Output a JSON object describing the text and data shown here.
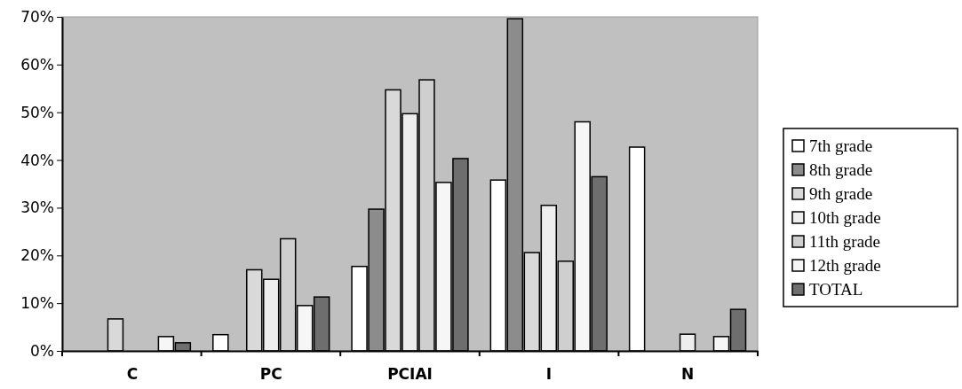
{
  "chart_data": {
    "type": "bar",
    "categories": [
      "C",
      "PC",
      "PCIAI",
      "I",
      "N"
    ],
    "series": [
      {
        "name": "7th grade",
        "color": "#ffffff",
        "values": [
          0,
          3.4,
          17.7,
          35.8,
          42.7
        ]
      },
      {
        "name": "8th grade",
        "color": "#8c8c8c",
        "values": [
          0,
          0,
          29.7,
          69.6,
          0
        ]
      },
      {
        "name": "9th grade",
        "color": "#d9d9d9",
        "values": [
          6.7,
          17,
          54.7,
          20.6,
          0
        ]
      },
      {
        "name": "10th grade",
        "color": "#eeeeee",
        "values": [
          0,
          15,
          49.7,
          30.5,
          3.5
        ]
      },
      {
        "name": "11th grade",
        "color": "#cfcfcf",
        "values": [
          0,
          23.5,
          56.8,
          18.8,
          0
        ]
      },
      {
        "name": "12th grade",
        "color": "#f6f6f6",
        "values": [
          3,
          9.5,
          35.3,
          48,
          3
        ]
      },
      {
        "name": "TOTAL",
        "color": "#6e6e6e",
        "values": [
          1.7,
          11.3,
          40.3,
          36.5,
          8.7
        ]
      }
    ],
    "ylim": [
      0,
      70
    ],
    "yticks": [
      {
        "value": 0,
        "label": "0%"
      },
      {
        "value": 10,
        "label": "10%"
      },
      {
        "value": 20,
        "label": "20%"
      },
      {
        "value": 30,
        "label": "30%"
      },
      {
        "value": 40,
        "label": "40%"
      },
      {
        "value": 50,
        "label": "50%"
      },
      {
        "value": 60,
        "label": "60%"
      },
      {
        "value": 70,
        "label": "70%"
      }
    ],
    "grid": false,
    "legend": "right"
  }
}
